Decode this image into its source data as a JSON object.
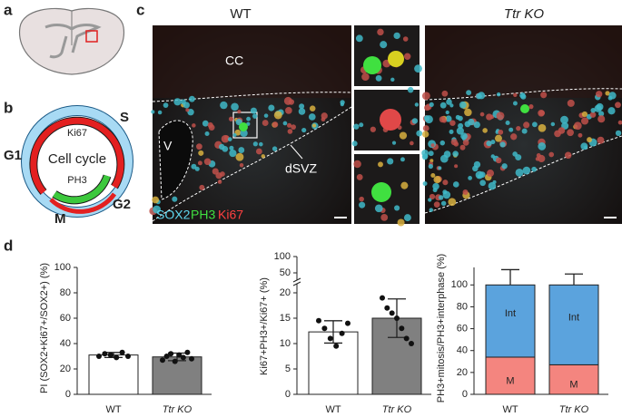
{
  "panel_labels": [
    "a",
    "b",
    "c",
    "d"
  ],
  "cell_cycle": {
    "title": "Cell cycle",
    "outer_marker": "Ki67",
    "inner_marker": "PH3",
    "phases": [
      "S",
      "G1",
      "G2",
      "M"
    ]
  },
  "micrographs": {
    "conditions": [
      "WT",
      "Ttr KO"
    ],
    "regions": [
      "CC",
      "V",
      "dSVZ"
    ],
    "stains": [
      "SOX2",
      "PH3",
      "Ki67"
    ]
  },
  "chart_data": [
    {
      "type": "bar",
      "y_label": "PI (SOX2+Ki67+/SOX2+) (%)",
      "categories": [
        "WT",
        "Ttr KO"
      ],
      "values": [
        31,
        29.5
      ],
      "errors": [
        2,
        3
      ],
      "points": [
        [
          30,
          32,
          31,
          29,
          33,
          30
        ],
        [
          27,
          30,
          32,
          26,
          31,
          29,
          33,
          28
        ]
      ],
      "colors": [
        "#ffffff",
        "#808080"
      ],
      "ylim": [
        0,
        100
      ],
      "yticks": [
        0,
        20,
        40,
        60,
        80,
        100
      ]
    },
    {
      "type": "bar",
      "y_label": "Ki67+PH3+/Ki67+ (%)",
      "categories": [
        "WT",
        "Ttr KO"
      ],
      "values": [
        12.3,
        15
      ],
      "errors": [
        2.2,
        3.8
      ],
      "points": [
        [
          14.5,
          13,
          11,
          9.5,
          12,
          14
        ],
        [
          19,
          17,
          16,
          15,
          13,
          11,
          10
        ]
      ],
      "colors": [
        "#ffffff",
        "#808080"
      ],
      "ylim": [
        0,
        100
      ],
      "axis_break": [
        20,
        50
      ],
      "yticks": [
        0,
        5,
        10,
        15,
        20,
        50,
        100
      ]
    },
    {
      "type": "stacked_bar",
      "y_label": "PH3+mitosis/PH3+interphase (%)",
      "categories": [
        "WT",
        "Ttr KO"
      ],
      "series": [
        {
          "name": "M",
          "color": "#f4857f",
          "values": [
            34,
            27
          ],
          "errors": [
            12,
            7
          ]
        },
        {
          "name": "Int",
          "color": "#5ba3dd",
          "values": [
            66,
            73
          ],
          "errors": [
            14,
            10
          ]
        }
      ],
      "ylim": [
        0,
        116
      ],
      "yticks": [
        0,
        20,
        40,
        60,
        80,
        100
      ]
    }
  ]
}
